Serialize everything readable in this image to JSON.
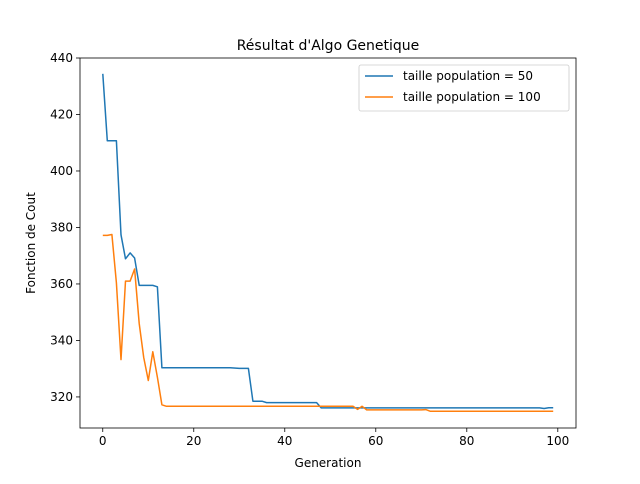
{
  "chart_data": {
    "type": "line",
    "title": "Résultat d'Algo Genetique",
    "xlabel": "Generation",
    "ylabel": "Fonction de Cout",
    "xlim": [
      -5,
      104
    ],
    "ylim": [
      309,
      440
    ],
    "xticks": [
      0,
      20,
      40,
      60,
      80,
      100
    ],
    "yticks": [
      320,
      340,
      360,
      380,
      400,
      420,
      440
    ],
    "grid": false,
    "legend_position": "top-right",
    "colors": {
      "series_50": "#1f77b4",
      "series_100": "#ff7f0e"
    },
    "series": [
      {
        "name": "taille population = 50",
        "points": [
          [
            0,
            434.4
          ],
          [
            1,
            410.7
          ],
          [
            2,
            410.7
          ],
          [
            3,
            410.7
          ],
          [
            4,
            377.4
          ],
          [
            5,
            368.9
          ],
          [
            6,
            371.0
          ],
          [
            7,
            369.2
          ],
          [
            8,
            359.5
          ],
          [
            9,
            359.5
          ],
          [
            10,
            359.5
          ],
          [
            11,
            359.5
          ],
          [
            12,
            359.0
          ],
          [
            13,
            330.3
          ],
          [
            14,
            330.3
          ],
          [
            20,
            330.3
          ],
          [
            28,
            330.3
          ],
          [
            30,
            330.1
          ],
          [
            32,
            330.1
          ],
          [
            33,
            318.5
          ],
          [
            34,
            318.5
          ],
          [
            35,
            318.5
          ],
          [
            36,
            318.0
          ],
          [
            40,
            318.0
          ],
          [
            47,
            318.0
          ],
          [
            48,
            316.1
          ],
          [
            55,
            316.1
          ],
          [
            56,
            316.1
          ],
          [
            57,
            316.1
          ],
          [
            60,
            316.1
          ],
          [
            80,
            316.1
          ],
          [
            96,
            316.1
          ],
          [
            97,
            315.9
          ],
          [
            98,
            316.2
          ],
          [
            99,
            316.2
          ]
        ]
      },
      {
        "name": "taille population = 100",
        "points": [
          [
            0,
            377.2
          ],
          [
            1,
            377.2
          ],
          [
            2,
            377.5
          ],
          [
            3,
            360.4
          ],
          [
            4,
            333.2
          ],
          [
            5,
            361.0
          ],
          [
            6,
            361.0
          ],
          [
            7,
            365.3
          ],
          [
            8,
            346.0
          ],
          [
            9,
            334.0
          ],
          [
            10,
            325.8
          ],
          [
            11,
            336.0
          ],
          [
            12,
            327.0
          ],
          [
            13,
            317.2
          ],
          [
            14,
            316.7
          ],
          [
            20,
            316.7
          ],
          [
            40,
            316.7
          ],
          [
            54,
            316.7
          ],
          [
            55,
            316.7
          ],
          [
            56,
            315.6
          ],
          [
            57,
            316.7
          ],
          [
            58,
            315.4
          ],
          [
            60,
            315.4
          ],
          [
            70,
            315.4
          ],
          [
            71,
            315.5
          ],
          [
            72,
            314.9
          ],
          [
            80,
            314.9
          ],
          [
            99,
            314.9
          ]
        ]
      }
    ]
  }
}
